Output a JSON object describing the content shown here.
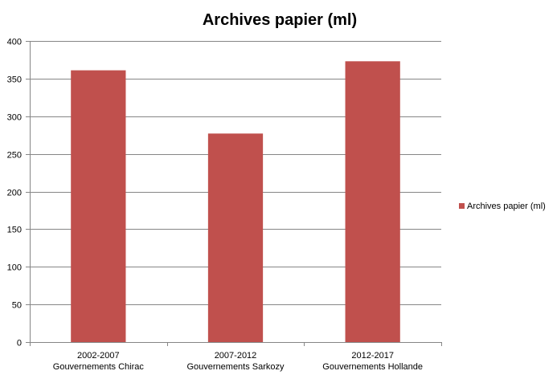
{
  "chart_data": {
    "type": "bar",
    "title": "Archives papier (ml)",
    "categories": [
      [
        "2002-2007",
        "Gouvernements Chirac"
      ],
      [
        "2007-2012",
        "Gouvernements Sarkozy"
      ],
      [
        "2012-2017",
        "Gouvernements Hollande"
      ]
    ],
    "series": [
      {
        "name": "Archives papier (ml)",
        "values": [
          361,
          277,
          373
        ],
        "color": "#C0504D"
      }
    ],
    "ylim": [
      0,
      400
    ],
    "yticks": [
      0,
      50,
      100,
      150,
      200,
      250,
      300,
      350,
      400
    ],
    "grid": true,
    "legend": "right"
  }
}
